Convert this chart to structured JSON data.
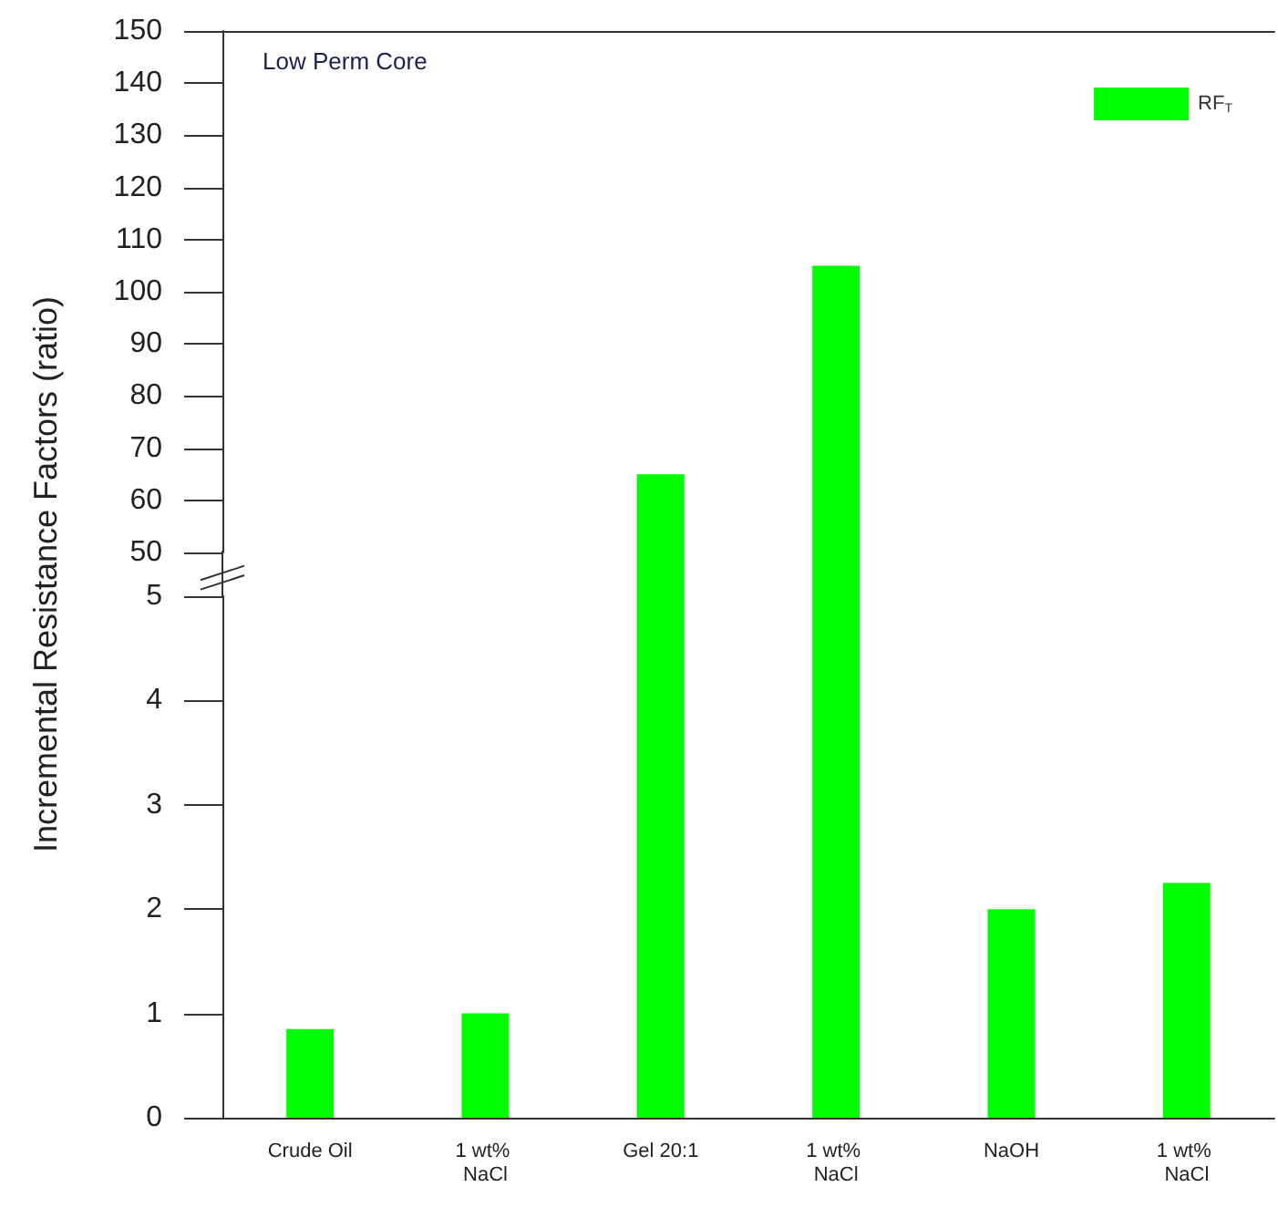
{
  "chart_data": [
    {
      "type": "bar",
      "title": "Low Perm Core",
      "ylabel": "Incremental Resistance Factors (ratio)",
      "categories": [
        "Crude Oil",
        "1 wt% NaCl",
        "Gel 20:1",
        "1 wt% NaCl",
        "NaOH",
        "1 wt% NaCl"
      ],
      "series": [
        {
          "name": "RF$_{T}$",
          "color": "#00ff00",
          "values": [
            null,
            null,
            65,
            105,
            null,
            null
          ]
        }
      ],
      "ylim": [
        50,
        150
      ],
      "yticks": [
        50,
        60,
        70,
        80,
        90,
        100,
        110,
        120,
        130,
        140,
        150
      ],
      "tick_labels": "y",
      "legend": "top right"
    },
    {
      "type": "bar",
      "categories": [
        "Crude Oil",
        "1 wt% NaCl",
        "Gel 20:1",
        "1 wt% NaCl",
        "NaOH",
        "1 wt% NaCl"
      ],
      "series": [
        {
          "color": "#00ff00",
          "values": [
            0.85,
            1.0,
            null,
            null,
            2.0,
            2.25
          ]
        }
      ],
      "ylim": [
        0,
        5
      ],
      "yticks": [
        0,
        1,
        2,
        3,
        4,
        5
      ]
    }
  ]
}
